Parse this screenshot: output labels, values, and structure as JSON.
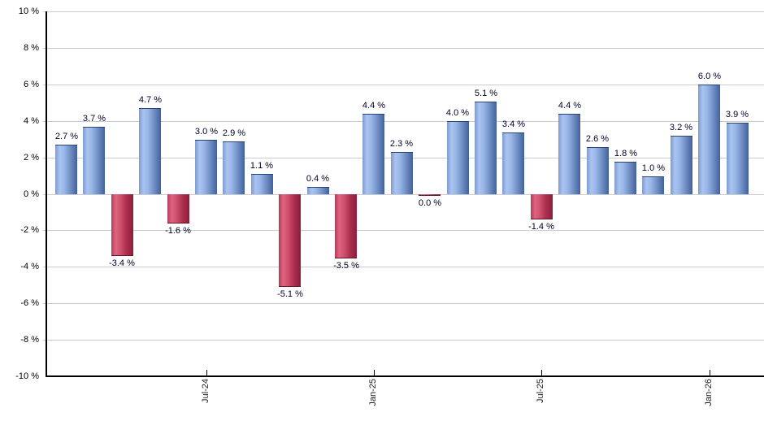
{
  "chart_data": {
    "type": "bar",
    "title": "",
    "xlabel": "",
    "ylabel": "",
    "unit": "%",
    "ylim": [
      -10,
      10
    ],
    "ytick_step": 2,
    "ytick_labels": [
      "10 %",
      "8 %",
      "6 %",
      "4 %",
      "2 %",
      "0 %",
      "-2 %",
      "-4 %",
      "-6 %",
      "-8 %",
      "-10 %"
    ],
    "values": [
      2.7,
      3.7,
      -3.4,
      4.7,
      -1.6,
      3.0,
      2.9,
      1.1,
      -5.1,
      0.4,
      -3.5,
      4.4,
      2.3,
      0.0,
      4.0,
      5.1,
      3.4,
      -1.4,
      4.4,
      2.6,
      1.8,
      1.0,
      3.2,
      6.0,
      3.9
    ],
    "bar_labels": [
      "2.7 %",
      "3.7 %",
      "-3.4 %",
      "4.7 %",
      "-1.6 %",
      "3.0 %",
      "2.9 %",
      "1.1 %",
      "-5.1 %",
      "0.4 %",
      "-3.5 %",
      "4.4 %",
      "2.3 %",
      "0.0 %",
      "4.0 %",
      "5.1 %",
      "3.4 %",
      "-1.4 %",
      "4.4 %",
      "2.6 %",
      "1.8 %",
      "1.0 %",
      "3.2 %",
      "6.0 %",
      "3.9 %"
    ],
    "xticks": [
      {
        "bar_index": 5,
        "label": "Jul-24"
      },
      {
        "bar_index": 11,
        "label": "Jan-25"
      },
      {
        "bar_index": 17,
        "label": "Jul-25"
      },
      {
        "bar_index": 23,
        "label": "Jan-26"
      }
    ],
    "legend_position": "none",
    "grid": "horizontal",
    "colors": {
      "positive_bar": "#92b1e4",
      "negative_bar": "#c44a68",
      "gridline": "#cccccc",
      "axis": "#000000",
      "value_label_text": "#000028",
      "tick_label_text": "#000000"
    }
  }
}
